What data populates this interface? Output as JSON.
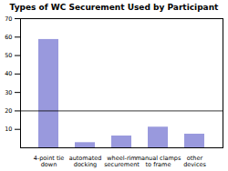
{
  "chart_data": {
    "type": "bar",
    "title": "Types of WC Securement Used by Participant",
    "categories": [
      "4-point tie\ndown",
      "automated\ndocking",
      "wheel-rim\nsecurement",
      "manual clamps\nto frame",
      "other\ndevices"
    ],
    "values": [
      58.7,
      2.8,
      6.4,
      11.2,
      7.4
    ],
    "color": "#9999dd",
    "ylim": [
      0,
      70
    ],
    "yticks": [
      10,
      20,
      30,
      40,
      50,
      60,
      70
    ],
    "hline": 20
  }
}
